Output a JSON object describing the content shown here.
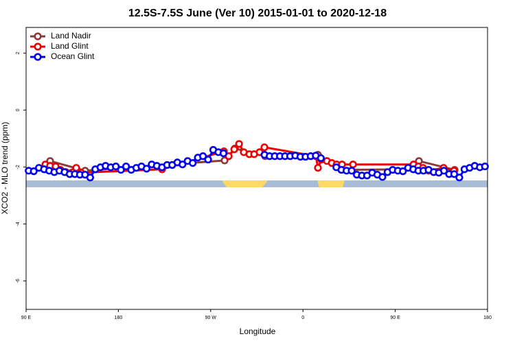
{
  "chart_data": {
    "type": "line",
    "title": "12.5S-7.5S June (Ver 10)   2015-01-01 to 2020-12-18",
    "x_label": "Longitude",
    "y_label": "XCO2 - MLO trend (ppm)",
    "xlim": [
      90,
      540
    ],
    "ylim": [
      -7,
      2.9
    ],
    "xticks": [
      {
        "value": 90,
        "label": "90 E"
      },
      180,
      {
        "value": 270,
        "label": "90 W"
      },
      {
        "value": 360,
        "label": "0"
      },
      {
        "value": 450,
        "label": "90 E"
      },
      {
        "value": 540,
        "label": "180"
      }
    ],
    "yticks": [
      -6,
      -4,
      -2,
      0,
      2
    ],
    "legend": "top-left",
    "series": [
      {
        "name": "Land Nadir",
        "color": "#8b3a3a",
        "x": [
          108.8,
          113.4,
          147.6,
          283.6,
          293.6,
          323.1,
          374.6,
          397.4,
          468.4,
          473.1,
          507.9
        ],
        "values": [
          -2.08,
          -1.79,
          -2.13,
          -1.77,
          -1.35,
          -1.62,
          -1.57,
          -2.1,
          -2.08,
          -1.79,
          -2.1
        ]
      },
      {
        "name": "Land Glint",
        "color": "#ee0000",
        "x": [
          108.8,
          113.4,
          118.8,
          123.5,
          128.8,
          138.9,
          143.6,
          222.6,
          282.9,
          287.6,
          293.0,
          297.7,
          302.3,
          307.7,
          312.4,
          317.7,
          322.4,
          372.6,
          374.6,
          378.0,
          383.4,
          388.1,
          392.8,
          398.1,
          408.8,
          467.8,
          472.5,
          477.1,
          482.5,
          497.2,
          507.3
        ],
        "values": [
          -1.91,
          -1.96,
          -1.98,
          -2.1,
          -2.18,
          -2.03,
          -2.2,
          -2.08,
          -1.45,
          -1.62,
          -1.38,
          -1.19,
          -1.48,
          -1.55,
          -1.55,
          -1.48,
          -1.31,
          -1.62,
          -2.03,
          -1.74,
          -1.79,
          -1.86,
          -1.91,
          -1.91,
          -1.91,
          -1.91,
          -1.98,
          -2.03,
          -2.13,
          -2.03,
          -2.13
        ]
      },
      {
        "name": "Ocean Glint",
        "color": "#0000ee",
        "x": [
          92.5,
          97.5,
          102.5,
          107.5,
          112.5,
          117.5,
          122.5,
          127.5,
          132.5,
          137.5,
          142.5,
          147.5,
          152.5,
          157.5,
          162.5,
          167.5,
          172.5,
          177.5,
          182.5,
          187.5,
          192.5,
          197.5,
          202.5,
          207.5,
          212.5,
          217.5,
          222.5,
          227.5,
          232.5,
          237.5,
          242.5,
          247.5,
          252.5,
          257.5,
          262.5,
          267.5,
          272.5,
          277.5,
          282.5,
          287.5,
          292.5,
          297.5,
          302.5,
          307.5,
          312.5,
          317.5,
          322.5,
          327.5,
          332.5,
          337.5,
          342.5,
          347.5,
          352.5,
          357.5,
          362.5,
          367.5,
          372.5,
          377.5,
          382.5,
          387.5,
          392.5,
          397.5,
          402.5,
          407.5,
          412.5,
          417.5,
          422.5,
          427.5,
          432.5,
          437.5,
          442.5,
          447.5,
          452.5,
          457.5,
          462.5,
          467.5,
          472.5,
          477.5,
          482.5,
          487.5,
          492.5,
          497.5,
          502.5,
          507.5,
          512.5,
          517.5,
          522.5,
          527.5,
          532.5,
          537.5
        ],
        "values": [
          -2.13,
          -2.15,
          -2.03,
          -2.08,
          -2.13,
          -2.18,
          -2.13,
          -2.18,
          -2.25,
          -2.25,
          -2.27,
          -2.27,
          -2.37,
          -2.08,
          -2.01,
          -1.96,
          -2.01,
          -1.98,
          -2.1,
          -1.98,
          -2.1,
          -2.03,
          -1.98,
          -2.06,
          -1.91,
          -1.96,
          -2.01,
          -1.93,
          -1.93,
          -1.84,
          -1.91,
          -1.79,
          -1.86,
          -1.67,
          -1.62,
          -1.74,
          -1.4,
          -1.48,
          -1.52,
          null,
          null,
          null,
          null,
          null,
          null,
          null,
          -1.57,
          -1.62,
          -1.62,
          -1.62,
          -1.62,
          -1.62,
          -1.6,
          -1.64,
          -1.64,
          -1.62,
          -1.6,
          -1.69,
          null,
          null,
          -2.01,
          -2.1,
          -2.13,
          -2.13,
          -2.27,
          -2.3,
          -2.3,
          -2.2,
          -2.27,
          -2.35,
          -2.18,
          -2.1,
          -2.13,
          -2.15,
          -2.03,
          -2.08,
          -2.13,
          -2.13,
          -2.1,
          -2.18,
          -2.2,
          -2.13,
          -2.25,
          -2.25,
          -2.37,
          -2.08,
          -2.03,
          -1.96,
          -2.01,
          -1.98
        ]
      }
    ]
  }
}
